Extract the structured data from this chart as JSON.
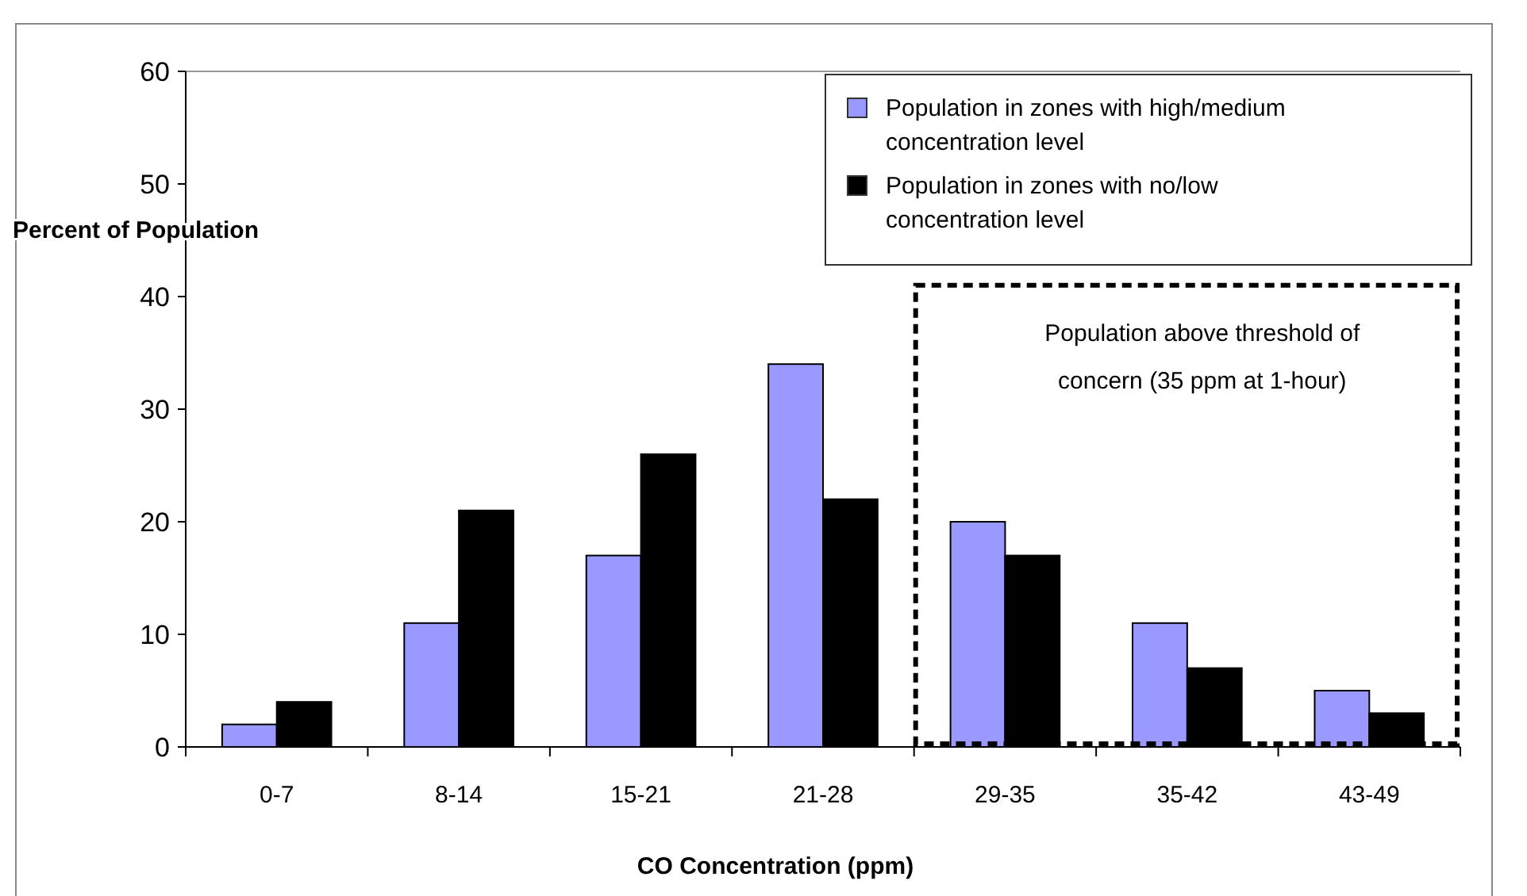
{
  "chart_data": {
    "type": "bar",
    "xlabel": "CO Concentration (ppm)",
    "ylabel": "Percent of Population",
    "categories": [
      "0-7",
      "8-14",
      "15-21",
      "21-28",
      "29-35",
      "35-42",
      "43-49"
    ],
    "series": [
      {
        "name": "Population in zones with high/medium concentration level",
        "color": "#9999ff",
        "values": [
          2,
          11,
          17,
          34,
          20,
          11,
          5
        ]
      },
      {
        "name": "Population in zones with no/low concentration level",
        "color": "#000000",
        "values": [
          4,
          21,
          26,
          22,
          17,
          7,
          3
        ]
      }
    ],
    "ylim": [
      0,
      60
    ],
    "yticks": [
      0,
      10,
      20,
      30,
      40,
      50,
      60
    ],
    "grid": false,
    "legend": "top right",
    "annotations": [
      "Population above threshold of concern (35 ppm at 1-hour)"
    ]
  }
}
